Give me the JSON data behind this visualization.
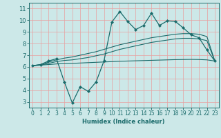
{
  "title": "",
  "xlabel": "Humidex (Indice chaleur)",
  "background_color": "#cce8e8",
  "line_color": "#1a6b6b",
  "grid_color": "#e8a0a0",
  "xlim": [
    -0.5,
    23.5
  ],
  "ylim": [
    2.5,
    11.5
  ],
  "xticks": [
    0,
    1,
    2,
    3,
    4,
    5,
    6,
    7,
    8,
    9,
    10,
    11,
    12,
    13,
    14,
    15,
    16,
    17,
    18,
    19,
    20,
    21,
    22,
    23
  ],
  "yticks": [
    3,
    4,
    5,
    6,
    7,
    8,
    9,
    10,
    11
  ],
  "main_x": [
    0,
    1,
    2,
    3,
    4,
    5,
    6,
    7,
    8,
    9,
    10,
    11,
    12,
    13,
    14,
    15,
    16,
    17,
    18,
    19,
    20,
    21,
    22,
    23
  ],
  "main_y": [
    6.1,
    6.2,
    6.5,
    6.7,
    4.7,
    2.9,
    4.3,
    3.9,
    4.7,
    6.5,
    9.85,
    10.75,
    9.9,
    9.2,
    9.55,
    10.6,
    9.55,
    9.95,
    9.9,
    9.35,
    8.75,
    8.5,
    7.45,
    6.5
  ],
  "smooth1_y": [
    6.1,
    6.2,
    6.4,
    6.6,
    6.75,
    6.85,
    7.0,
    7.15,
    7.3,
    7.5,
    7.7,
    7.9,
    8.05,
    8.2,
    8.35,
    8.5,
    8.6,
    8.7,
    8.8,
    8.85,
    8.85,
    8.8,
    8.6,
    6.5
  ],
  "smooth2_y": [
    6.1,
    6.15,
    6.3,
    6.45,
    6.55,
    6.6,
    6.7,
    6.8,
    6.95,
    7.1,
    7.3,
    7.5,
    7.65,
    7.8,
    7.95,
    8.1,
    8.2,
    8.3,
    8.4,
    8.45,
    8.45,
    8.4,
    8.25,
    6.5
  ],
  "linear_y": [
    6.1,
    6.15,
    6.2,
    6.25,
    6.28,
    6.3,
    6.33,
    6.36,
    6.39,
    6.42,
    6.45,
    6.48,
    6.5,
    6.52,
    6.54,
    6.56,
    6.58,
    6.6,
    6.62,
    6.63,
    6.64,
    6.63,
    6.6,
    6.5
  ]
}
